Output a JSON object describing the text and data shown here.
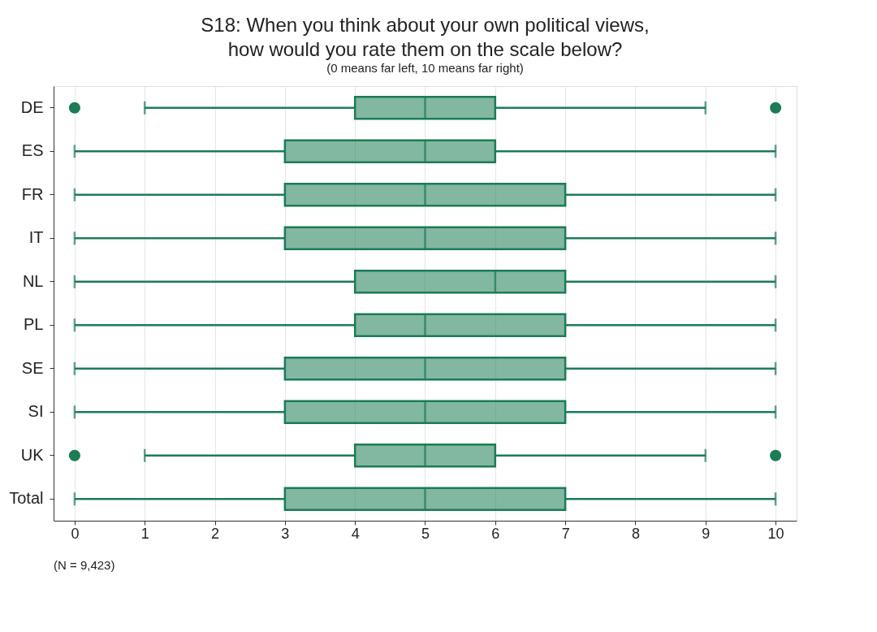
{
  "chart_data": {
    "type": "box",
    "orientation": "horizontal",
    "title": "S18: When you think about your own political views,\nhow would you rate them on the scale below?",
    "subtitle": "(0 means far left, 10 means far right)",
    "categories": [
      "DE",
      "ES",
      "FR",
      "IT",
      "NL",
      "PL",
      "SE",
      "SI",
      "UK",
      "Total"
    ],
    "xlim": [
      -0.3,
      10.3
    ],
    "xticks": [
      0,
      1,
      2,
      3,
      4,
      5,
      6,
      7,
      8,
      9,
      10
    ],
    "grid": "x",
    "annotations": [
      "(N =  9,423)"
    ],
    "series": [
      {
        "color": "#1b7c56",
        "boxes": [
          {
            "low": 1,
            "q1": 4,
            "median": 5,
            "q3": 6,
            "high": 9,
            "outliers": [
              0,
              10
            ]
          },
          {
            "low": 0,
            "q1": 3,
            "median": 5,
            "q3": 6,
            "high": 10
          },
          {
            "low": 0,
            "q1": 3,
            "median": 5,
            "q3": 7,
            "high": 10
          },
          {
            "low": 0,
            "q1": 3,
            "median": 5,
            "q3": 7,
            "high": 10
          },
          {
            "low": 0,
            "q1": 4,
            "median": 6,
            "q3": 7,
            "high": 10
          },
          {
            "low": 0,
            "q1": 4,
            "median": 5,
            "q3": 7,
            "high": 10
          },
          {
            "low": 0,
            "q1": 3,
            "median": 5,
            "q3": 7,
            "high": 10
          },
          {
            "low": 0,
            "q1": 3,
            "median": 5,
            "q3": 7,
            "high": 10
          },
          {
            "low": 1,
            "q1": 4,
            "median": 5,
            "q3": 6,
            "high": 9,
            "outliers": [
              0,
              10
            ]
          },
          {
            "low": 0,
            "q1": 3,
            "median": 5,
            "q3": 7,
            "high": 10
          }
        ]
      }
    ]
  }
}
